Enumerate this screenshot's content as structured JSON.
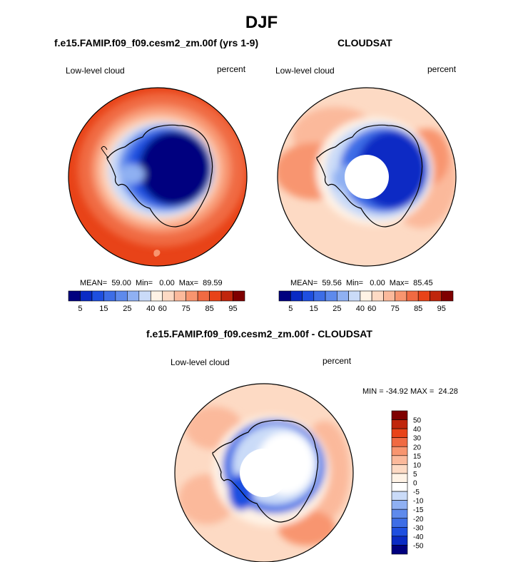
{
  "page": {
    "title": "DJF"
  },
  "panels": [
    {
      "title": "f.e15.FAMIP.f09_f09.cesm2_zm.00f (yrs 1-9)",
      "left_label": "Low-level cloud",
      "right_label": "percent",
      "stats": "MEAN=  59.00  Min=   0.00  Max=  89.59"
    },
    {
      "title": "CLOUDSAT",
      "left_label": "Low-level cloud",
      "right_label": "percent",
      "stats": "MEAN=  59.56  Min=   0.00  Max=  85.45"
    },
    {
      "title": "f.e15.FAMIP.f09_f09.cesm2_zm.00f - CLOUDSAT",
      "left_label": "Low-level cloud",
      "right_label": "percent",
      "stats": "MIN = -34.92 MAX =  24.28"
    }
  ],
  "colors": {
    "abs_scale": [
      "#00007f",
      "#0a2bc4",
      "#1e4fe0",
      "#3d6de6",
      "#5e8aec",
      "#8fb0f2",
      "#cadbf8",
      "#fff3e6",
      "#fddac4",
      "#fbb99b",
      "#f8956f",
      "#f06a42",
      "#e84318",
      "#c0260c",
      "#7f0000"
    ],
    "diff_scale": [
      "#00007f",
      "#0a2bc4",
      "#1e4fe0",
      "#3d6de6",
      "#5e8aec",
      "#8fb0f2",
      "#cadbf8",
      "#ffffff",
      "#fff3e6",
      "#fddac4",
      "#fbb99b",
      "#f8956f",
      "#f06a42",
      "#e84318",
      "#c0260c",
      "#7f0000"
    ]
  },
  "chart_data": [
    {
      "type": "heatmap",
      "projection": "south-polar stereographic",
      "title": "f.e15.FAMIP.f09_f09.cesm2_zm.00f (yrs 1-9)",
      "variable": "Low-level cloud",
      "units": "percent",
      "stats": {
        "mean": 59.0,
        "min": 0.0,
        "max": 89.59
      },
      "colorbar_ticks": [
        "5",
        "15",
        "25",
        "40",
        "60",
        "75",
        "85",
        "95"
      ],
      "colorbar_levels": [
        5,
        10,
        15,
        20,
        25,
        30,
        40,
        50,
        60,
        70,
        75,
        80,
        85,
        90,
        95
      ],
      "summary": {
        "antarctic_interior": 5,
        "antarctic_coast": 30,
        "ice_edge": 60,
        "southern_ocean": 87
      }
    },
    {
      "type": "heatmap",
      "projection": "south-polar stereographic",
      "title": "CLOUDSAT",
      "variable": "Low-level cloud",
      "units": "percent",
      "stats": {
        "mean": 59.56,
        "min": 0.0,
        "max": 85.45
      },
      "colorbar_ticks": [
        "5",
        "15",
        "25",
        "40",
        "60",
        "75",
        "85",
        "95"
      ],
      "colorbar_levels": [
        5,
        10,
        15,
        20,
        25,
        30,
        40,
        50,
        60,
        70,
        75,
        80,
        85,
        90,
        95
      ],
      "summary": {
        "polar_data_gap": "missing",
        "antarctic_interior": 15,
        "antarctic_coast": 30,
        "ice_edge": 55,
        "southern_ocean": 75
      }
    },
    {
      "type": "heatmap",
      "projection": "south-polar stereographic",
      "title": "f.e15.FAMIP.f09_f09.cesm2_zm.00f - CLOUDSAT",
      "variable": "Low-level cloud",
      "units": "percent",
      "stats": {
        "min": -34.92,
        "max": 24.28
      },
      "colorbar_ticks": [
        "50",
        "40",
        "30",
        "20",
        "15",
        "10",
        "5",
        "0",
        "-5",
        "-10",
        "-15",
        "-20",
        "-30",
        "-40",
        "-50"
      ],
      "summary": {
        "polar_data_gap": "missing",
        "antarctic_coast": -25,
        "ice_edge": -5,
        "southern_ocean": 12
      }
    }
  ]
}
